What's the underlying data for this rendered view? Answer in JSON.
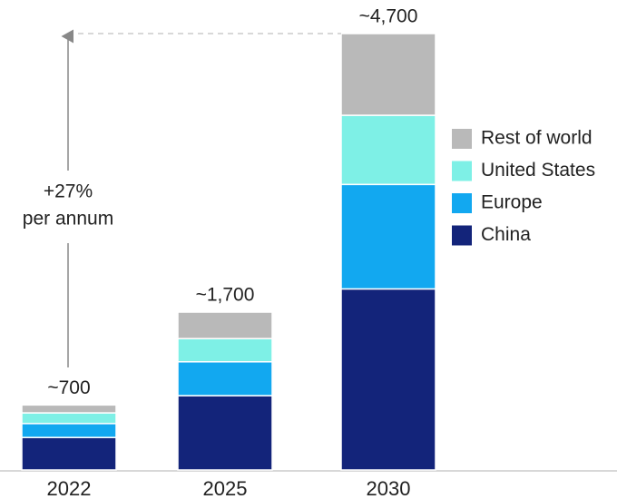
{
  "chart_data": {
    "type": "stacked-bar",
    "categories": [
      "2022",
      "2025",
      "2030"
    ],
    "series": [
      {
        "name": "China",
        "color": "#13247a",
        "values": [
          350,
          800,
          1950
        ]
      },
      {
        "name": "Europe",
        "color": "#12a8f0",
        "values": [
          150,
          365,
          1125
        ]
      },
      {
        "name": "United States",
        "color": "#7ef0e6",
        "values": [
          115,
          250,
          745
        ]
      },
      {
        "name": "Rest of world",
        "color": "#b9b9b9",
        "values": [
          85,
          285,
          880
        ]
      }
    ],
    "totals": [
      700,
      1700,
      4700
    ],
    "total_labels": [
      "~700",
      "~1,700",
      "~4,700"
    ],
    "annotation": [
      "+27%",
      "per annum"
    ],
    "legend": "right"
  }
}
